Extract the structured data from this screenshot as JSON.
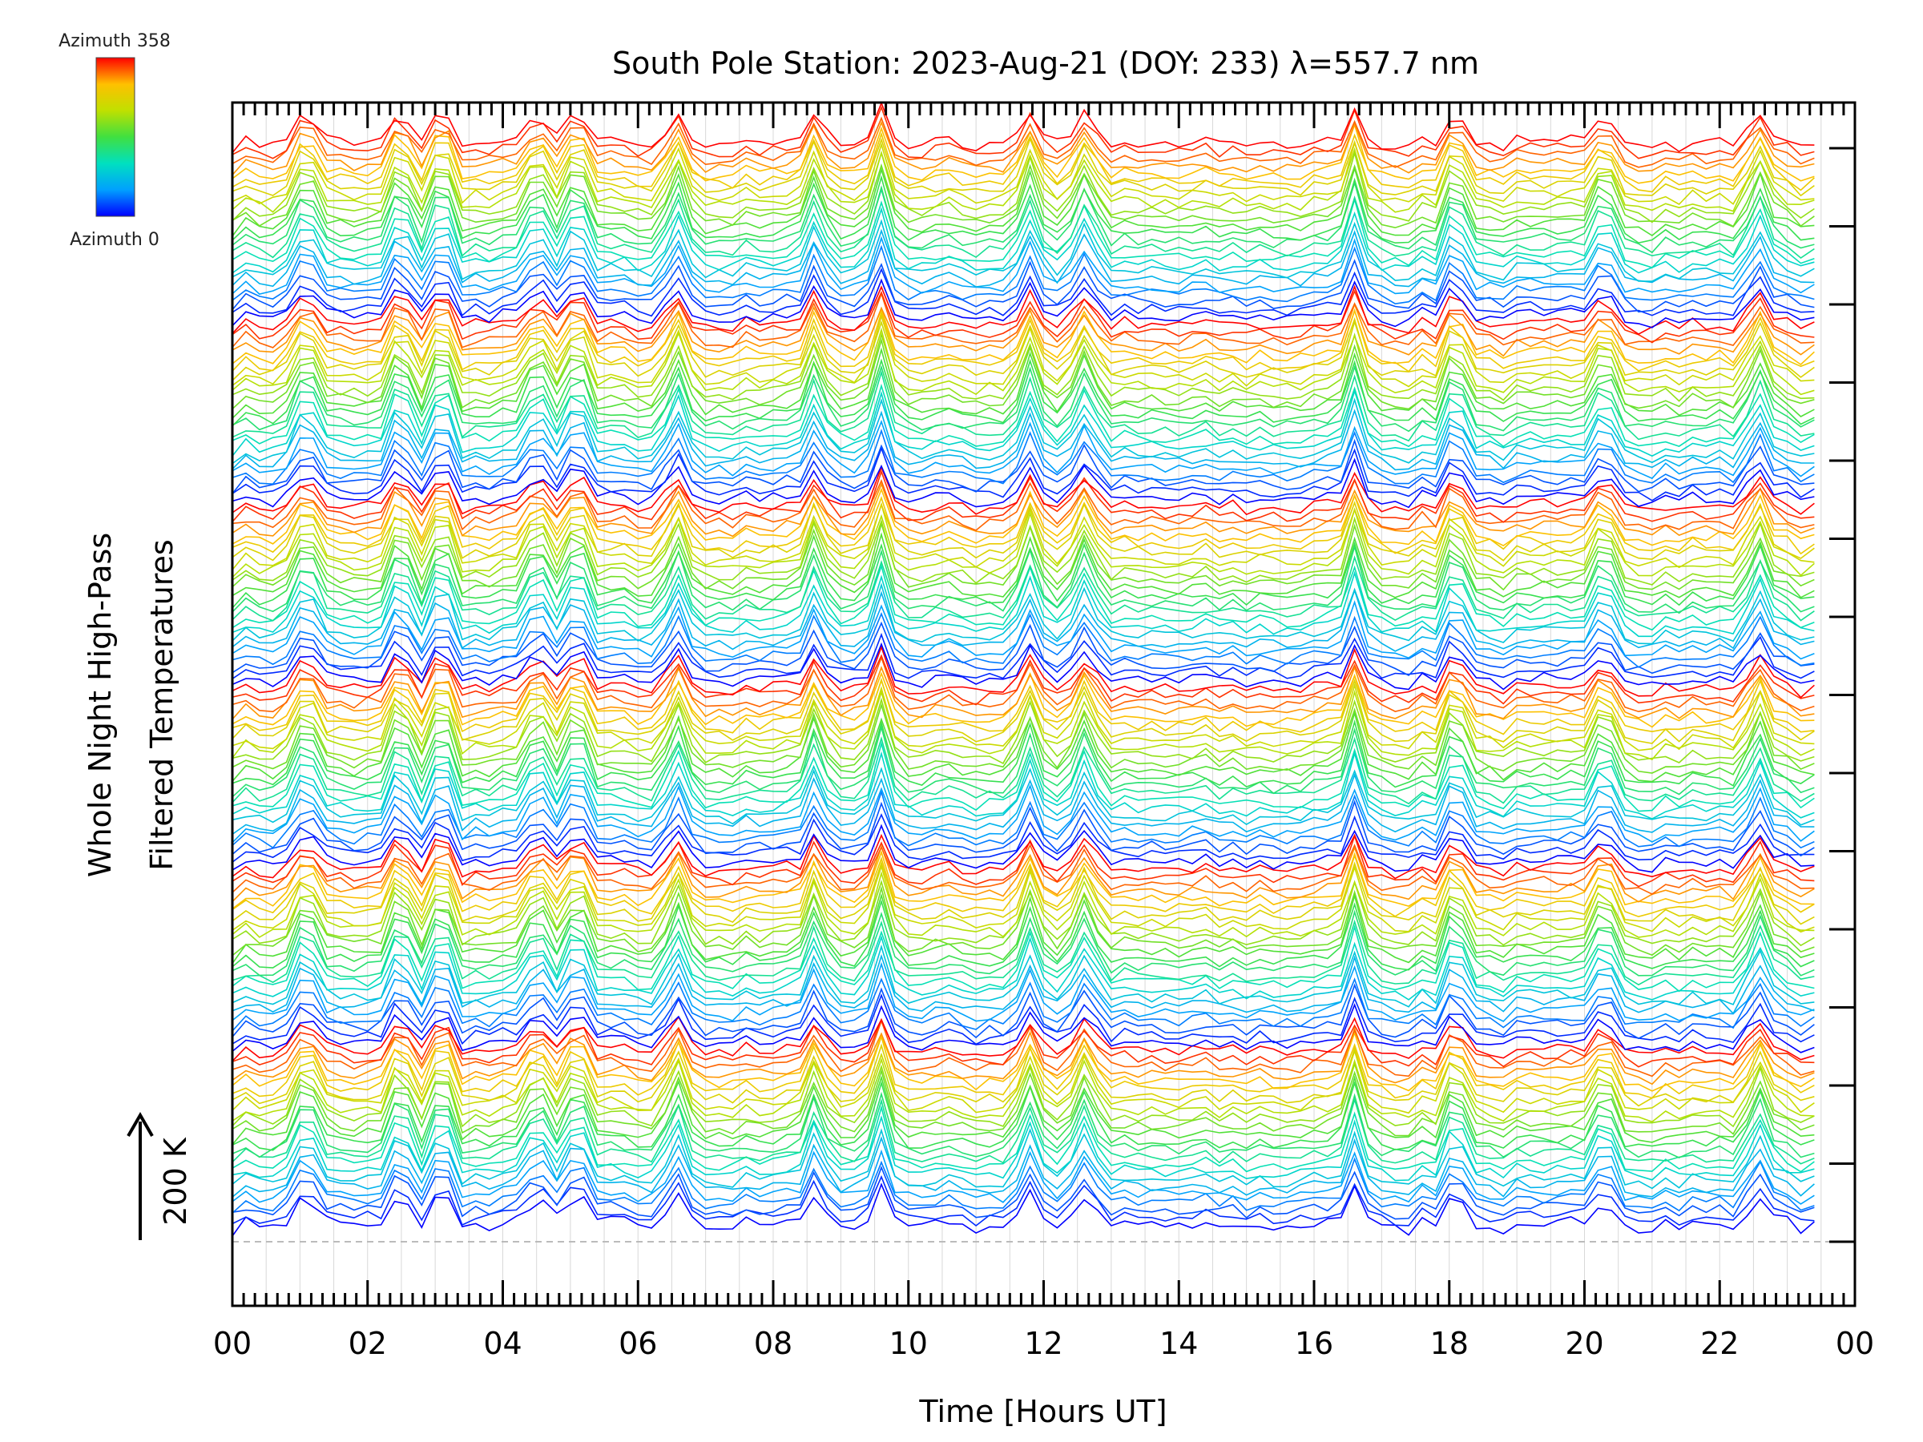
{
  "chart_data": {
    "type": "line",
    "title": "South Pole Station: 2023-Aug-21 (DOY: 233) λ=557.7 nm",
    "xlabel": "Time [Hours UT]",
    "ylabel_line1": "Whole Night High-Pass",
    "ylabel_line2": "Filtered Temperatures",
    "scale_label": "200 K",
    "xlim": [
      0,
      24
    ],
    "x_tick_labels": [
      "00",
      "02",
      "04",
      "06",
      "08",
      "10",
      "12",
      "14",
      "16",
      "18",
      "20",
      "22",
      "00"
    ],
    "legend": {
      "top_label": "Azimuth 358",
      "bottom_label": "Azimuth 0",
      "gradient": [
        "#0000ff",
        "#00a0ff",
        "#00e0c0",
        "#40e040",
        "#c0e000",
        "#ffc000",
        "#ff0000"
      ]
    },
    "series_description_groups": 6,
    "series_per_group": 24,
    "sample_interval_hours": 0.2,
    "x_end_hours": 23.5,
    "spike_times_hours": [
      1.1,
      2.5,
      3.1,
      4.5,
      5.1,
      6.6,
      8.6,
      9.6,
      11.8,
      12.6,
      16.6,
      18.1,
      20.3,
      22.6
    ]
  }
}
